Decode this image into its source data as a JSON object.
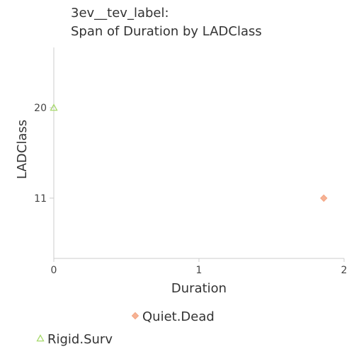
{
  "chart_data": {
    "type": "scatter",
    "title_lines": [
      "3ev__tev_label:",
      "Span of Duration by LADClass"
    ],
    "xlabel": "Duration",
    "ylabel": "LADClass",
    "xlim": [
      0,
      2
    ],
    "ylim": [
      5,
      26
    ],
    "x_ticks": [
      0,
      1,
      2
    ],
    "y_ticks": [
      11,
      20
    ],
    "grid": false,
    "legend_placement": "bottom",
    "series": [
      {
        "name": "Quiet.Dead",
        "marker": "diamond",
        "color": "#f4a582",
        "points": [
          {
            "x": 1.86,
            "y": 11
          }
        ]
      },
      {
        "name": "Rigid.Surv",
        "marker": "triangle",
        "color": "#a6d96a",
        "points": [
          {
            "x": 0,
            "y": 20
          }
        ]
      }
    ]
  }
}
